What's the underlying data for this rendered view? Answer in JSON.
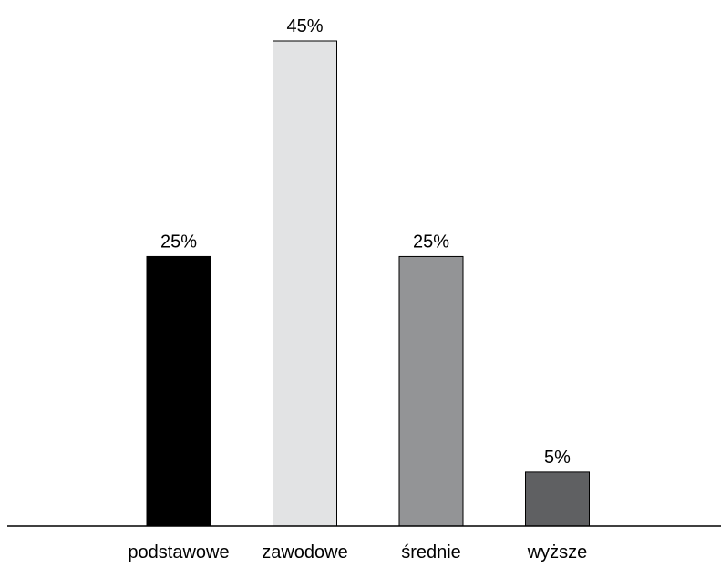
{
  "chart_data": {
    "type": "bar",
    "categories": [
      "podstawowe",
      "zawodowe",
      "średnie",
      "wyższe"
    ],
    "values": [
      25,
      45,
      25,
      5
    ],
    "value_labels": [
      "25%",
      "45%",
      "25%",
      "5%"
    ],
    "colors": [
      "#000000",
      "#e2e3e4",
      "#939496",
      "#5f6062"
    ],
    "ylim": [
      0,
      45
    ],
    "grid": false,
    "legend": "none"
  }
}
